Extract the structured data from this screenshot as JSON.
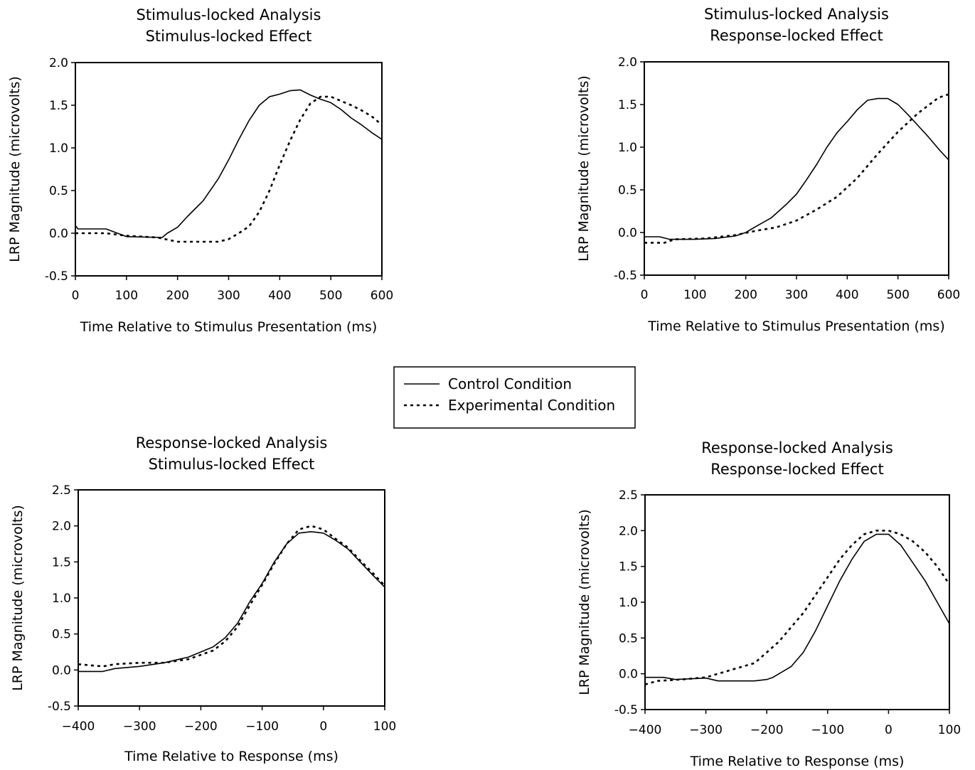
{
  "legend": {
    "items": [
      {
        "label": "Control Condition",
        "style": "solid"
      },
      {
        "label": "Experimental Condition",
        "style": "dotted"
      }
    ]
  },
  "chart_data": [
    {
      "type": "line",
      "title": [
        "Stimulus-locked Analysis",
        "Stimulus-locked Effect"
      ],
      "xlabel": "Time Relative to Stimulus Presentation (ms)",
      "ylabel": "LRP Magnitude (microvolts)",
      "xlim": [
        0,
        600
      ],
      "ylim": [
        -0.5,
        2.0
      ],
      "xticks": [
        0,
        100,
        200,
        300,
        400,
        500,
        600
      ],
      "yticks": [
        -0.5,
        0.0,
        0.5,
        1.0,
        1.5,
        2.0
      ],
      "ytick_labels": [
        "-0.5",
        "0.0",
        "0.5",
        "1.0",
        "1.5",
        "2.0"
      ],
      "grid": false,
      "series": [
        {
          "name": "Control Condition",
          "style": "solid",
          "x": [
            0,
            5,
            60,
            100,
            170,
            180,
            200,
            220,
            250,
            280,
            300,
            320,
            340,
            360,
            380,
            400,
            420,
            440,
            460,
            480,
            500,
            520,
            540,
            560,
            580,
            600
          ],
          "y": [
            0.09,
            0.05,
            0.05,
            -0.04,
            -0.05,
            0.0,
            0.07,
            0.2,
            0.38,
            0.64,
            0.86,
            1.1,
            1.32,
            1.5,
            1.6,
            1.63,
            1.67,
            1.68,
            1.62,
            1.57,
            1.53,
            1.45,
            1.35,
            1.27,
            1.18,
            1.1
          ]
        },
        {
          "name": "Experimental Condition",
          "style": "dotted",
          "x": [
            0,
            60,
            100,
            160,
            200,
            250,
            280,
            300,
            320,
            340,
            360,
            380,
            400,
            420,
            440,
            460,
            480,
            500,
            520,
            540,
            560,
            580,
            600
          ],
          "y": [
            0.0,
            0.0,
            -0.03,
            -0.05,
            -0.1,
            -0.1,
            -0.1,
            -0.07,
            0.0,
            0.08,
            0.25,
            0.5,
            0.8,
            1.08,
            1.33,
            1.52,
            1.6,
            1.6,
            1.55,
            1.5,
            1.44,
            1.37,
            1.27
          ]
        }
      ]
    },
    {
      "type": "line",
      "title": [
        "Stimulus-locked Analysis",
        "Response-locked Effect"
      ],
      "xlabel": "Time Relative to Stimulus Presentation (ms)",
      "ylabel": "LRP Magnitude (microvolts)",
      "xlim": [
        0,
        600
      ],
      "ylim": [
        -0.5,
        2.0
      ],
      "xticks": [
        0,
        100,
        200,
        300,
        400,
        500,
        600
      ],
      "yticks": [
        -0.5,
        0.0,
        0.5,
        1.0,
        1.5,
        2.0
      ],
      "ytick_labels": [
        "-0.5",
        "0.0",
        "0.5",
        "1.0",
        "1.5",
        "2.0"
      ],
      "grid": false,
      "series": [
        {
          "name": "Control Condition",
          "style": "solid",
          "x": [
            0,
            30,
            50,
            100,
            140,
            180,
            200,
            220,
            250,
            280,
            300,
            320,
            340,
            360,
            380,
            400,
            420,
            440,
            460,
            480,
            500,
            520,
            540,
            560,
            580,
            600
          ],
          "y": [
            -0.05,
            -0.05,
            -0.08,
            -0.08,
            -0.07,
            -0.04,
            0.0,
            0.07,
            0.17,
            0.33,
            0.45,
            0.62,
            0.8,
            1.0,
            1.17,
            1.3,
            1.44,
            1.55,
            1.57,
            1.57,
            1.5,
            1.38,
            1.25,
            1.12,
            0.98,
            0.85
          ]
        },
        {
          "name": "Experimental Condition",
          "style": "dotted",
          "x": [
            0,
            40,
            60,
            120,
            180,
            220,
            260,
            300,
            340,
            380,
            420,
            460,
            500,
            540,
            580,
            600
          ],
          "y": [
            -0.12,
            -0.12,
            -0.08,
            -0.07,
            -0.03,
            0.02,
            0.06,
            0.14,
            0.27,
            0.42,
            0.64,
            0.92,
            1.18,
            1.4,
            1.58,
            1.62
          ]
        }
      ]
    },
    {
      "type": "line",
      "title": [
        "Response-locked Analysis",
        "Stimulus-locked Effect"
      ],
      "xlabel": "Time Relative to Response (ms)",
      "ylabel": "LRP Magnitude (microvolts)",
      "xlim": [
        -400,
        100
      ],
      "ylim": [
        -0.5,
        2.5
      ],
      "xticks": [
        -400,
        -300,
        -200,
        -100,
        0,
        100
      ],
      "yticks": [
        -0.5,
        0.0,
        0.5,
        1.0,
        1.5,
        2.0,
        2.5
      ],
      "ytick_labels": [
        "-0.5",
        "0.0",
        "0.5",
        "1.0",
        "1.5",
        "2.0",
        "2.5"
      ],
      "grid": false,
      "series": [
        {
          "name": "Control Condition",
          "style": "solid",
          "x": [
            -400,
            -360,
            -340,
            -300,
            -260,
            -220,
            -180,
            -160,
            -140,
            -120,
            -100,
            -80,
            -60,
            -40,
            -20,
            0,
            20,
            40,
            60,
            80,
            100
          ],
          "y": [
            -0.02,
            -0.02,
            0.02,
            0.05,
            0.1,
            0.18,
            0.32,
            0.45,
            0.65,
            0.95,
            1.2,
            1.5,
            1.75,
            1.9,
            1.92,
            1.9,
            1.8,
            1.68,
            1.5,
            1.32,
            1.15
          ]
        },
        {
          "name": "Experimental Condition",
          "style": "dotted",
          "x": [
            -400,
            -360,
            -340,
            -300,
            -260,
            -220,
            -180,
            -160,
            -140,
            -120,
            -100,
            -80,
            -60,
            -40,
            -20,
            0,
            20,
            40,
            60,
            80,
            100
          ],
          "y": [
            0.08,
            0.05,
            0.08,
            0.1,
            0.1,
            0.15,
            0.27,
            0.4,
            0.6,
            0.9,
            1.18,
            1.48,
            1.75,
            1.95,
            2.0,
            1.95,
            1.82,
            1.7,
            1.52,
            1.35,
            1.17
          ]
        }
      ]
    },
    {
      "type": "line",
      "title": [
        "Response-locked Analysis",
        "Response-locked Effect"
      ],
      "xlabel": "Time Relative to Response (ms)",
      "ylabel": "LRP Magnitude (microvolts)",
      "xlim": [
        -400,
        100
      ],
      "ylim": [
        -0.5,
        2.5
      ],
      "xticks": [
        -400,
        -300,
        -200,
        -100,
        0,
        100
      ],
      "yticks": [
        -0.5,
        0.0,
        0.5,
        1.0,
        1.5,
        2.0,
        2.5
      ],
      "ytick_labels": [
        "-0.5",
        "0.0",
        "0.5",
        "1.0",
        "1.5",
        "2.0",
        "2.5"
      ],
      "grid": false,
      "series": [
        {
          "name": "Control Condition",
          "style": "solid",
          "x": [
            -400,
            -370,
            -350,
            -300,
            -280,
            -220,
            -200,
            -190,
            -180,
            -160,
            -140,
            -120,
            -100,
            -80,
            -60,
            -40,
            -20,
            0,
            20,
            40,
            60,
            80,
            100
          ],
          "y": [
            -0.05,
            -0.05,
            -0.08,
            -0.06,
            -0.1,
            -0.1,
            -0.08,
            -0.05,
            0.0,
            0.1,
            0.3,
            0.6,
            0.95,
            1.3,
            1.6,
            1.85,
            1.95,
            1.95,
            1.8,
            1.55,
            1.3,
            1.0,
            0.7
          ]
        },
        {
          "name": "Experimental Condition",
          "style": "dotted",
          "x": [
            -400,
            -380,
            -340,
            -300,
            -260,
            -240,
            -220,
            -200,
            -180,
            -160,
            -140,
            -120,
            -100,
            -80,
            -60,
            -40,
            -20,
            0,
            20,
            40,
            60,
            80,
            100
          ],
          "y": [
            -0.15,
            -0.1,
            -0.08,
            -0.05,
            0.05,
            0.1,
            0.15,
            0.3,
            0.45,
            0.65,
            0.85,
            1.1,
            1.35,
            1.6,
            1.8,
            1.95,
            2.0,
            2.0,
            1.95,
            1.85,
            1.7,
            1.5,
            1.25
          ]
        }
      ]
    }
  ]
}
